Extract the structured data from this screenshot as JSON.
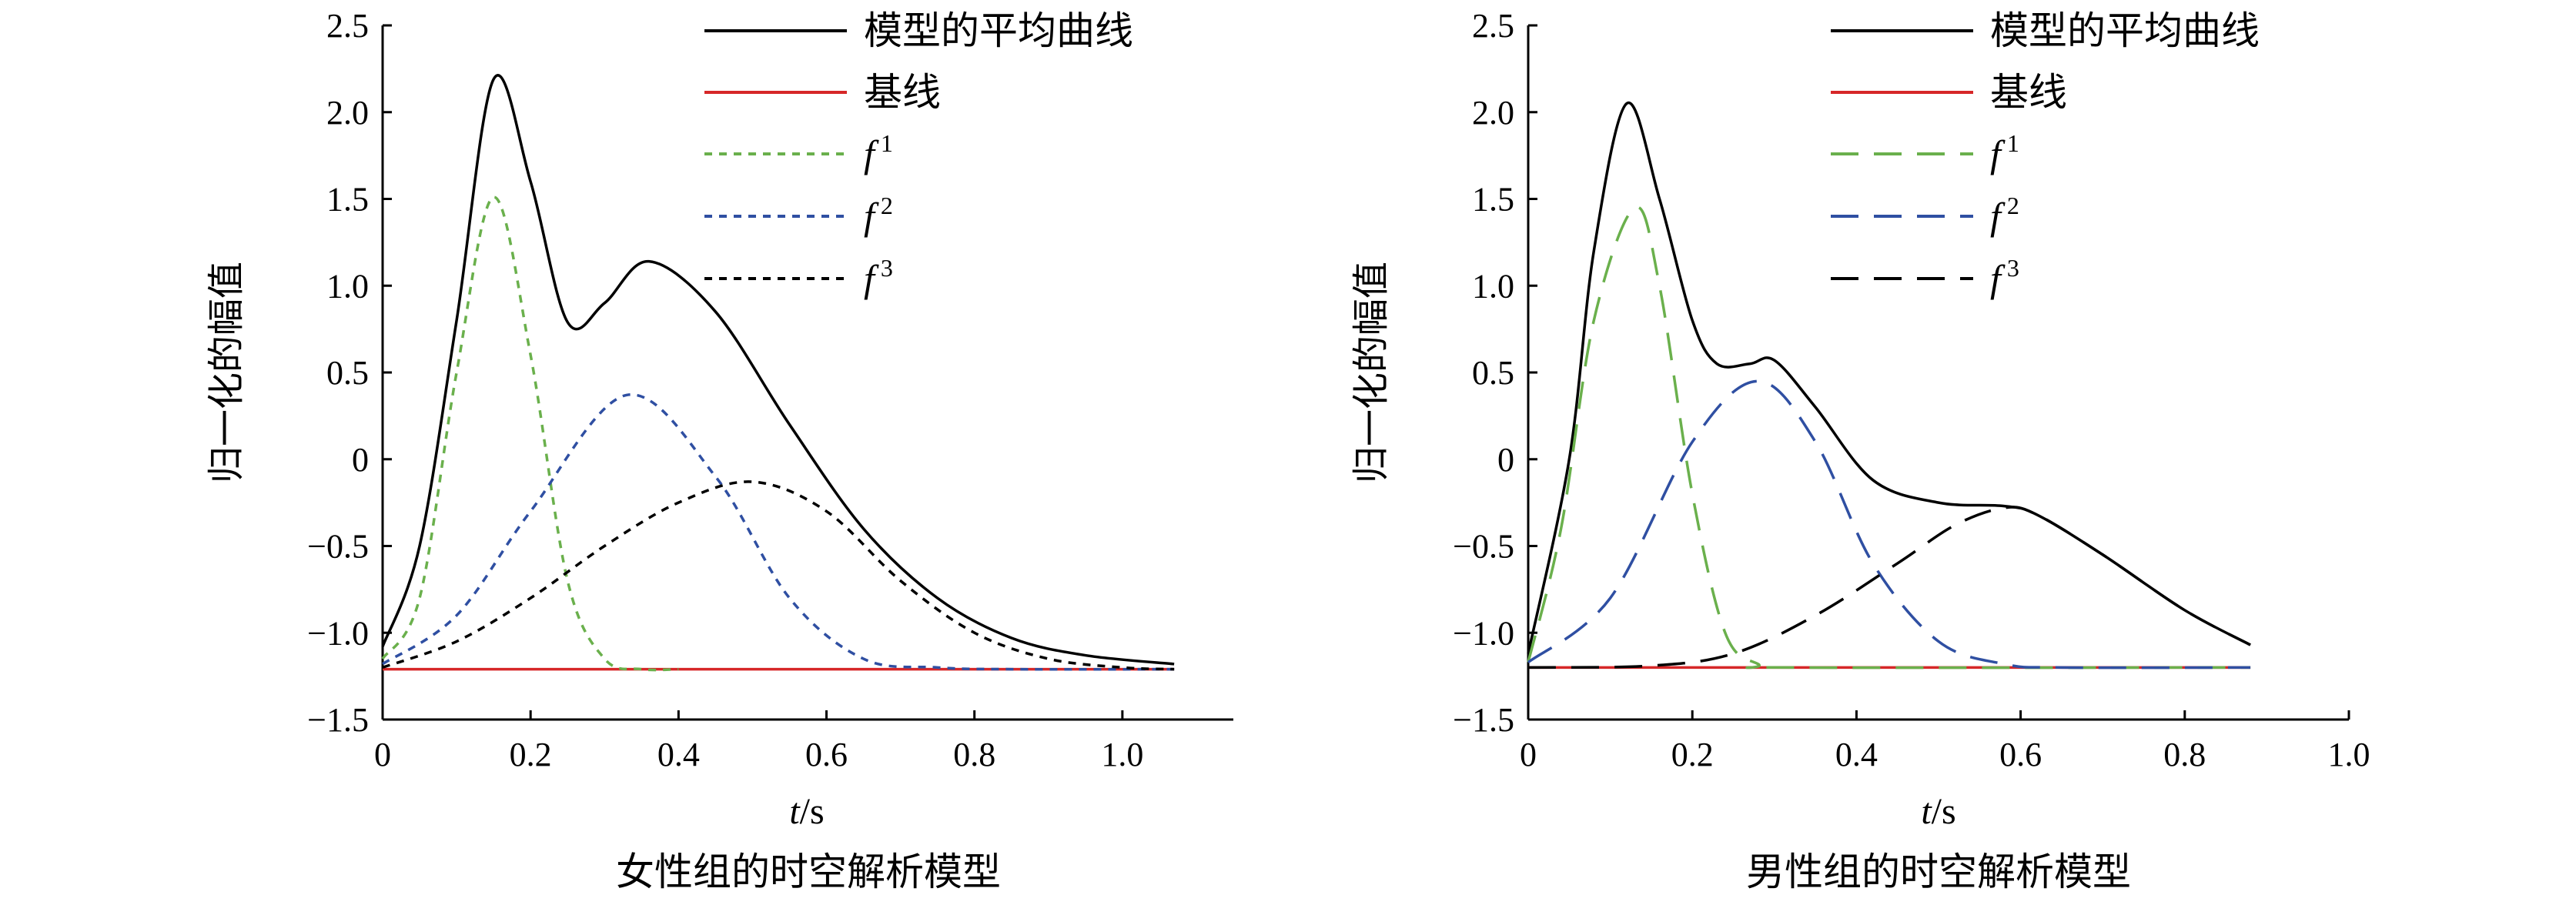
{
  "colors": {
    "model_avg": "#000000",
    "baseline": "#d62728",
    "f1": "#6ab04c",
    "f2": "#2f4fa2",
    "f3": "#000000"
  },
  "chart_data": [
    {
      "type": "line",
      "caption": "女性组的时空解析模型",
      "xlabel_italic": "t",
      "xlabel_unit": "/s",
      "ylabel": "归一化的幅值",
      "xlim": [
        0,
        1.15
      ],
      "ylim": [
        -1.5,
        2.5
      ],
      "x_ticks": [
        0,
        0.2,
        0.4,
        0.6,
        0.8,
        1.0
      ],
      "x_tick_labels": [
        "0",
        "0.2",
        "0.4",
        "0.6",
        "0.8",
        "1.0"
      ],
      "y_ticks": [
        -1.5,
        -1.0,
        -0.5,
        0,
        0.5,
        1.0,
        1.5,
        2.0,
        2.5
      ],
      "y_tick_labels": [
        "−1.5",
        "−1.0",
        "−0.5",
        "0",
        "0.5",
        "1.0",
        "1.5",
        "2.0",
        "2.5"
      ],
      "legend_position": "top-right",
      "series": [
        {
          "name": "模型的平均曲线",
          "key": "model_avg",
          "dash": "solid",
          "points": [
            [
              0,
              -1.08
            ],
            [
              0.05,
              -0.5
            ],
            [
              0.1,
              0.8
            ],
            [
              0.15,
              2.19
            ],
            [
              0.2,
              1.6
            ],
            [
              0.25,
              0.79
            ],
            [
              0.3,
              0.9
            ],
            [
              0.36,
              1.14
            ],
            [
              0.45,
              0.85
            ],
            [
              0.55,
              0.2
            ],
            [
              0.65,
              -0.4
            ],
            [
              0.75,
              -0.8
            ],
            [
              0.85,
              -1.03
            ],
            [
              0.95,
              -1.13
            ],
            [
              1.07,
              -1.18
            ]
          ]
        },
        {
          "name": "基线",
          "key": "baseline",
          "dash": "solid",
          "points": [
            [
              0,
              -1.21
            ],
            [
              1.07,
              -1.21
            ]
          ]
        },
        {
          "name": "f",
          "sup": "1",
          "key": "f1",
          "dash": "short",
          "points": [
            [
              0,
              -1.15
            ],
            [
              0.05,
              -0.8
            ],
            [
              0.1,
              0.5
            ],
            [
              0.15,
              1.51
            ],
            [
              0.2,
              0.6
            ],
            [
              0.25,
              -0.7
            ],
            [
              0.3,
              -1.15
            ],
            [
              0.35,
              -1.21
            ],
            [
              0.4,
              -1.21
            ]
          ]
        },
        {
          "name": "f",
          "sup": "2",
          "key": "f2",
          "dash": "short",
          "points": [
            [
              0,
              -1.18
            ],
            [
              0.1,
              -0.9
            ],
            [
              0.2,
              -0.3
            ],
            [
              0.33,
              0.37
            ],
            [
              0.45,
              -0.1
            ],
            [
              0.55,
              -0.8
            ],
            [
              0.65,
              -1.15
            ],
            [
              0.75,
              -1.2
            ],
            [
              0.85,
              -1.21
            ],
            [
              1.07,
              -1.21
            ]
          ]
        },
        {
          "name": "f",
          "sup": "3",
          "key": "f3",
          "dash": "short",
          "points": [
            [
              0,
              -1.2
            ],
            [
              0.1,
              -1.05
            ],
            [
              0.2,
              -0.8
            ],
            [
              0.3,
              -0.5
            ],
            [
              0.4,
              -0.25
            ],
            [
              0.5,
              -0.13
            ],
            [
              0.6,
              -0.3
            ],
            [
              0.7,
              -0.7
            ],
            [
              0.8,
              -1.0
            ],
            [
              0.9,
              -1.15
            ],
            [
              1.0,
              -1.2
            ],
            [
              1.07,
              -1.21
            ]
          ]
        }
      ]
    },
    {
      "type": "line",
      "caption": "男性组的时空解析模型",
      "xlabel_italic": "t",
      "xlabel_unit": "/s",
      "ylabel": "归一化的幅值",
      "xlim": [
        0,
        1.0
      ],
      "ylim": [
        -1.5,
        2.5
      ],
      "x_ticks": [
        0,
        0.2,
        0.4,
        0.6,
        0.8,
        1.0
      ],
      "x_tick_labels": [
        "0",
        "0.2",
        "0.4",
        "0.6",
        "0.8",
        "1.0"
      ],
      "y_ticks": [
        -1.5,
        -1.0,
        -0.5,
        0,
        0.5,
        1.0,
        1.5,
        2.0,
        2.5
      ],
      "y_tick_labels": [
        "−1.5",
        "−1.0",
        "−0.5",
        "0",
        "0.5",
        "1.0",
        "1.5",
        "2.0",
        "2.5"
      ],
      "legend_position": "top-right",
      "series": [
        {
          "name": "模型的平均曲线",
          "key": "model_avg",
          "dash": "solid",
          "points": [
            [
              0,
              -1.12
            ],
            [
              0.05,
              0.0
            ],
            [
              0.08,
              1.2
            ],
            [
              0.12,
              2.05
            ],
            [
              0.16,
              1.5
            ],
            [
              0.2,
              0.8
            ],
            [
              0.23,
              0.55
            ],
            [
              0.27,
              0.55
            ],
            [
              0.3,
              0.57
            ],
            [
              0.35,
              0.3
            ],
            [
              0.42,
              -0.12
            ],
            [
              0.5,
              -0.25
            ],
            [
              0.58,
              -0.27
            ],
            [
              0.62,
              -0.32
            ],
            [
              0.7,
              -0.55
            ],
            [
              0.8,
              -0.87
            ],
            [
              0.88,
              -1.07
            ]
          ]
        },
        {
          "name": "基线",
          "key": "baseline",
          "dash": "solid",
          "points": [
            [
              0,
              -1.2
            ],
            [
              0.88,
              -1.2
            ]
          ]
        },
        {
          "name": "f",
          "sup": "1",
          "key": "f1",
          "dash": "long",
          "points": [
            [
              0,
              -1.17
            ],
            [
              0.04,
              -0.4
            ],
            [
              0.08,
              0.8
            ],
            [
              0.13,
              1.45
            ],
            [
              0.16,
              1.0
            ],
            [
              0.2,
              -0.2
            ],
            [
              0.24,
              -1.0
            ],
            [
              0.28,
              -1.18
            ],
            [
              0.32,
              -1.2
            ],
            [
              0.88,
              -1.2
            ]
          ]
        },
        {
          "name": "f",
          "sup": "2",
          "key": "f2",
          "dash": "long",
          "points": [
            [
              0,
              -1.17
            ],
            [
              0.1,
              -0.8
            ],
            [
              0.2,
              0.1
            ],
            [
              0.28,
              0.45
            ],
            [
              0.35,
              0.1
            ],
            [
              0.42,
              -0.6
            ],
            [
              0.5,
              -1.05
            ],
            [
              0.58,
              -1.18
            ],
            [
              0.65,
              -1.2
            ],
            [
              0.88,
              -1.2
            ]
          ]
        },
        {
          "name": "f",
          "sup": "3",
          "key": "f3",
          "dash": "long",
          "points": [
            [
              0,
              -1.2
            ],
            [
              0.15,
              -1.19
            ],
            [
              0.25,
              -1.12
            ],
            [
              0.35,
              -0.9
            ],
            [
              0.45,
              -0.6
            ],
            [
              0.52,
              -0.38
            ],
            [
              0.58,
              -0.28
            ],
            [
              0.62,
              -0.32
            ],
            [
              0.7,
              -0.55
            ],
            [
              0.8,
              -0.87
            ],
            [
              0.88,
              -1.07
            ]
          ]
        }
      ]
    }
  ]
}
